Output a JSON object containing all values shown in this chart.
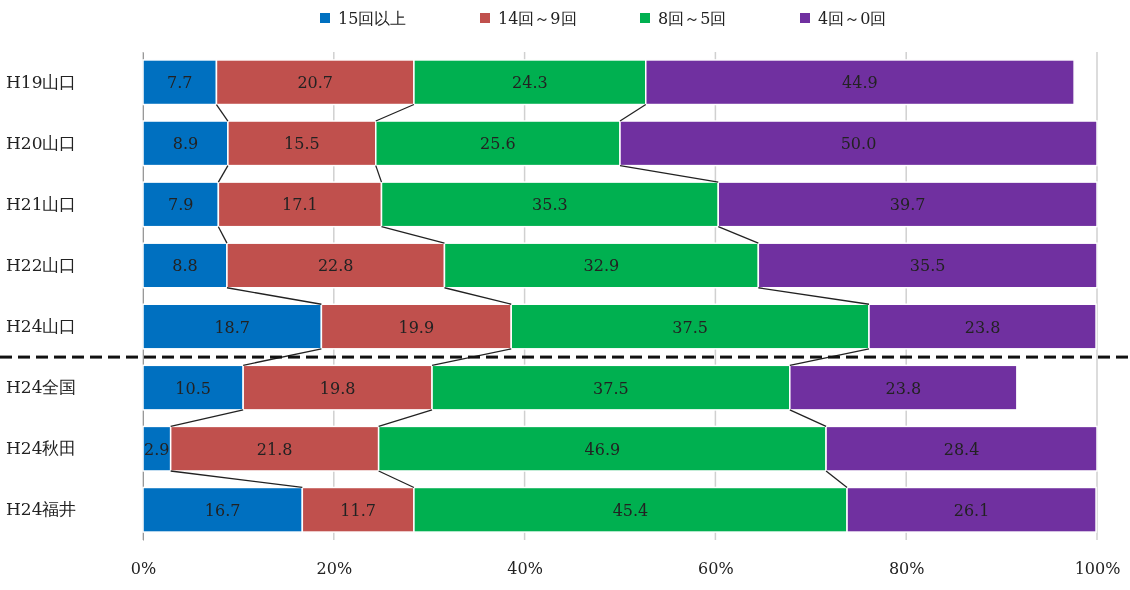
{
  "chart_data": {
    "type": "bar",
    "orientation": "horizontal",
    "stacked": true,
    "categories": [
      "H19山口",
      "H20山口",
      "H21山口",
      "H22山口",
      "H24山口",
      "H24全国",
      "H24秋田",
      "H24福井"
    ],
    "series": [
      {
        "name": "15回以上",
        "color": "#0070c0",
        "values": [
          7.7,
          8.9,
          7.9,
          8.8,
          18.7,
          10.5,
          2.9,
          16.7
        ],
        "value_labels": [
          "7.7",
          "8.9",
          "7.9",
          "8.8",
          "18.7",
          "10.5",
          "2.9",
          "16.7"
        ]
      },
      {
        "name": "14回～9回",
        "color": "#c0504d",
        "values": [
          20.7,
          15.5,
          17.1,
          22.8,
          19.9,
          19.8,
          21.8,
          11.7
        ],
        "value_labels": [
          "20.7",
          "15.5",
          "17.1",
          "22.8",
          "19.9",
          "19.8",
          "21.8",
          "11.7"
        ]
      },
      {
        "name": "8回～5回",
        "color": "#00b050",
        "values": [
          24.3,
          25.6,
          35.3,
          32.9,
          37.5,
          37.5,
          46.9,
          45.4
        ],
        "value_labels": [
          "24.3",
          "25.6",
          "35.3",
          "32.9",
          "37.5",
          "37.5",
          "46.9",
          "45.4"
        ]
      },
      {
        "name": "4回～0回",
        "color": "#7030a0",
        "values": [
          44.9,
          50.0,
          39.7,
          35.5,
          23.8,
          23.8,
          28.4,
          26.1
        ],
        "value_labels": [
          "44.9",
          "50.0",
          "39.7",
          "35.5",
          "23.8",
          "23.8",
          "28.4",
          "26.1"
        ]
      }
    ],
    "xlim": [
      0,
      100
    ],
    "xticks": [
      {
        "value": 0,
        "label": "0%"
      },
      {
        "value": 20,
        "label": "20%"
      },
      {
        "value": 40,
        "label": "40%"
      },
      {
        "value": 60,
        "label": "60%"
      },
      {
        "value": 80,
        "label": "80%"
      },
      {
        "value": 100,
        "label": "100%"
      }
    ],
    "grid": "x",
    "legend": "top"
  }
}
